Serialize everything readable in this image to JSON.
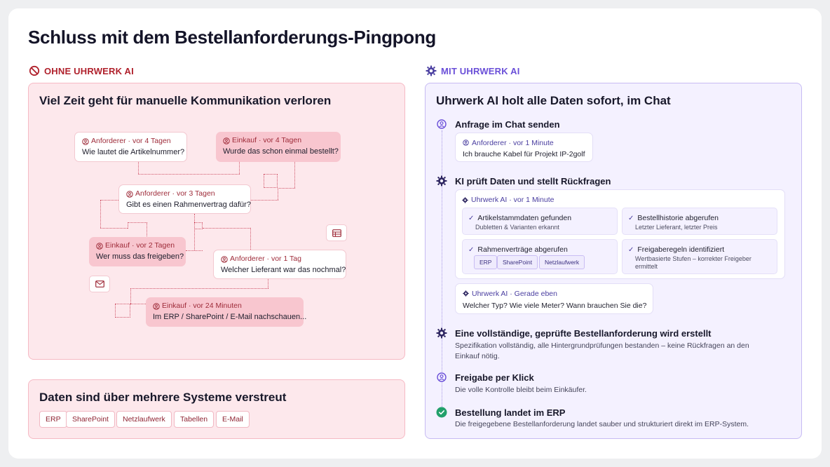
{
  "title": "Schluss mit dem Bestellanforderungs-Pingpong",
  "left": {
    "label": "OHNE UHRWERK AI",
    "heading": "Viel Zeit geht für manuelle Kommunikation verloren",
    "bubbles": [
      {
        "meta": "Anforderer · vor 4 Tagen",
        "msg": "Wie lautet die Artikelnummer?"
      },
      {
        "meta": "Einkauf · vor 4 Tagen",
        "msg": "Wurde das schon einmal bestellt?"
      },
      {
        "meta": "Anforderer · vor 3 Tagen",
        "msg": "Gibt es einen Rahmenvertrag dafür?"
      },
      {
        "meta": "Einkauf · vor 2 Tagen",
        "msg": "Wer muss das freigeben?"
      },
      {
        "meta": "Anforderer · vor 1 Tag",
        "msg": "Welcher Lieferant war das nochmal?"
      },
      {
        "meta": "Einkauf · vor 24 Minuten",
        "msg": "Im ERP / SharePoint / E-Mail nachschauen..."
      }
    ],
    "heading2": "Daten sind über mehrere Systeme verstreut",
    "systems": [
      "ERP",
      "SharePoint",
      "Netzlaufwerk",
      "Tabellen",
      "E-Mail"
    ]
  },
  "right": {
    "label": "MIT UHRWERK AI",
    "heading": "Uhrwerk AI holt alle Daten sofort, im Chat",
    "step1": {
      "title": "Anfrage im Chat senden",
      "meta": "Anforderer · vor 1 Minute",
      "msg": "Ich brauche Kabel für Projekt IP-2golf"
    },
    "step2": {
      "title": "KI prüft Daten und stellt Rückfragen",
      "meta": "Uhrwerk AI · vor 1 Minute",
      "checks": [
        {
          "title": "Artikelstammdaten gefunden",
          "desc": "Dubletten & Varianten erkannt"
        },
        {
          "title": "Bestellhistorie abgerufen",
          "desc": "Letzter Lieferant, letzter Preis"
        },
        {
          "title": "Rahmenverträge abgerufen",
          "desc": ""
        },
        {
          "title": "Freigaberegeln identifiziert",
          "desc": "Wertbasierte Stufen – korrekter Freigeber ermittelt"
        }
      ],
      "tags": [
        "ERP",
        "SharePoint",
        "Netzlaufwerk"
      ],
      "reply_meta": "Uhrwerk AI · Gerade eben",
      "reply_msg": "Welcher Typ? Wie viele Meter? Wann brauchen Sie die?"
    },
    "step3": {
      "title": "Eine vollständige, geprüfte Bestellanforderung wird erstellt",
      "desc": "Spezifikation vollständig, alle Hintergrundprüfungen bestanden – keine Rückfragen an den Einkauf nötig."
    },
    "step4": {
      "title": "Freigabe per Klick",
      "desc": "Die volle Kontrolle bleibt beim Einkäufer."
    },
    "step5": {
      "title": "Bestellung landet im ERP",
      "desc": "Die freigegebene Bestellanforderung landet sauber und strukturiert direkt im ERP-System."
    }
  },
  "icons": {
    "ban": "ban-icon",
    "gear": "gear-icon",
    "user": "user-circle-icon",
    "check": "check-circle-icon",
    "mail": "mail-icon",
    "table": "table-icon"
  },
  "colors": {
    "red_accent": "#b0212c",
    "purple_accent": "#6a4fd8",
    "left_panel_bg": "#fde8ec",
    "right_panel_bg": "#f4f1ff",
    "success": "#22a06b"
  }
}
